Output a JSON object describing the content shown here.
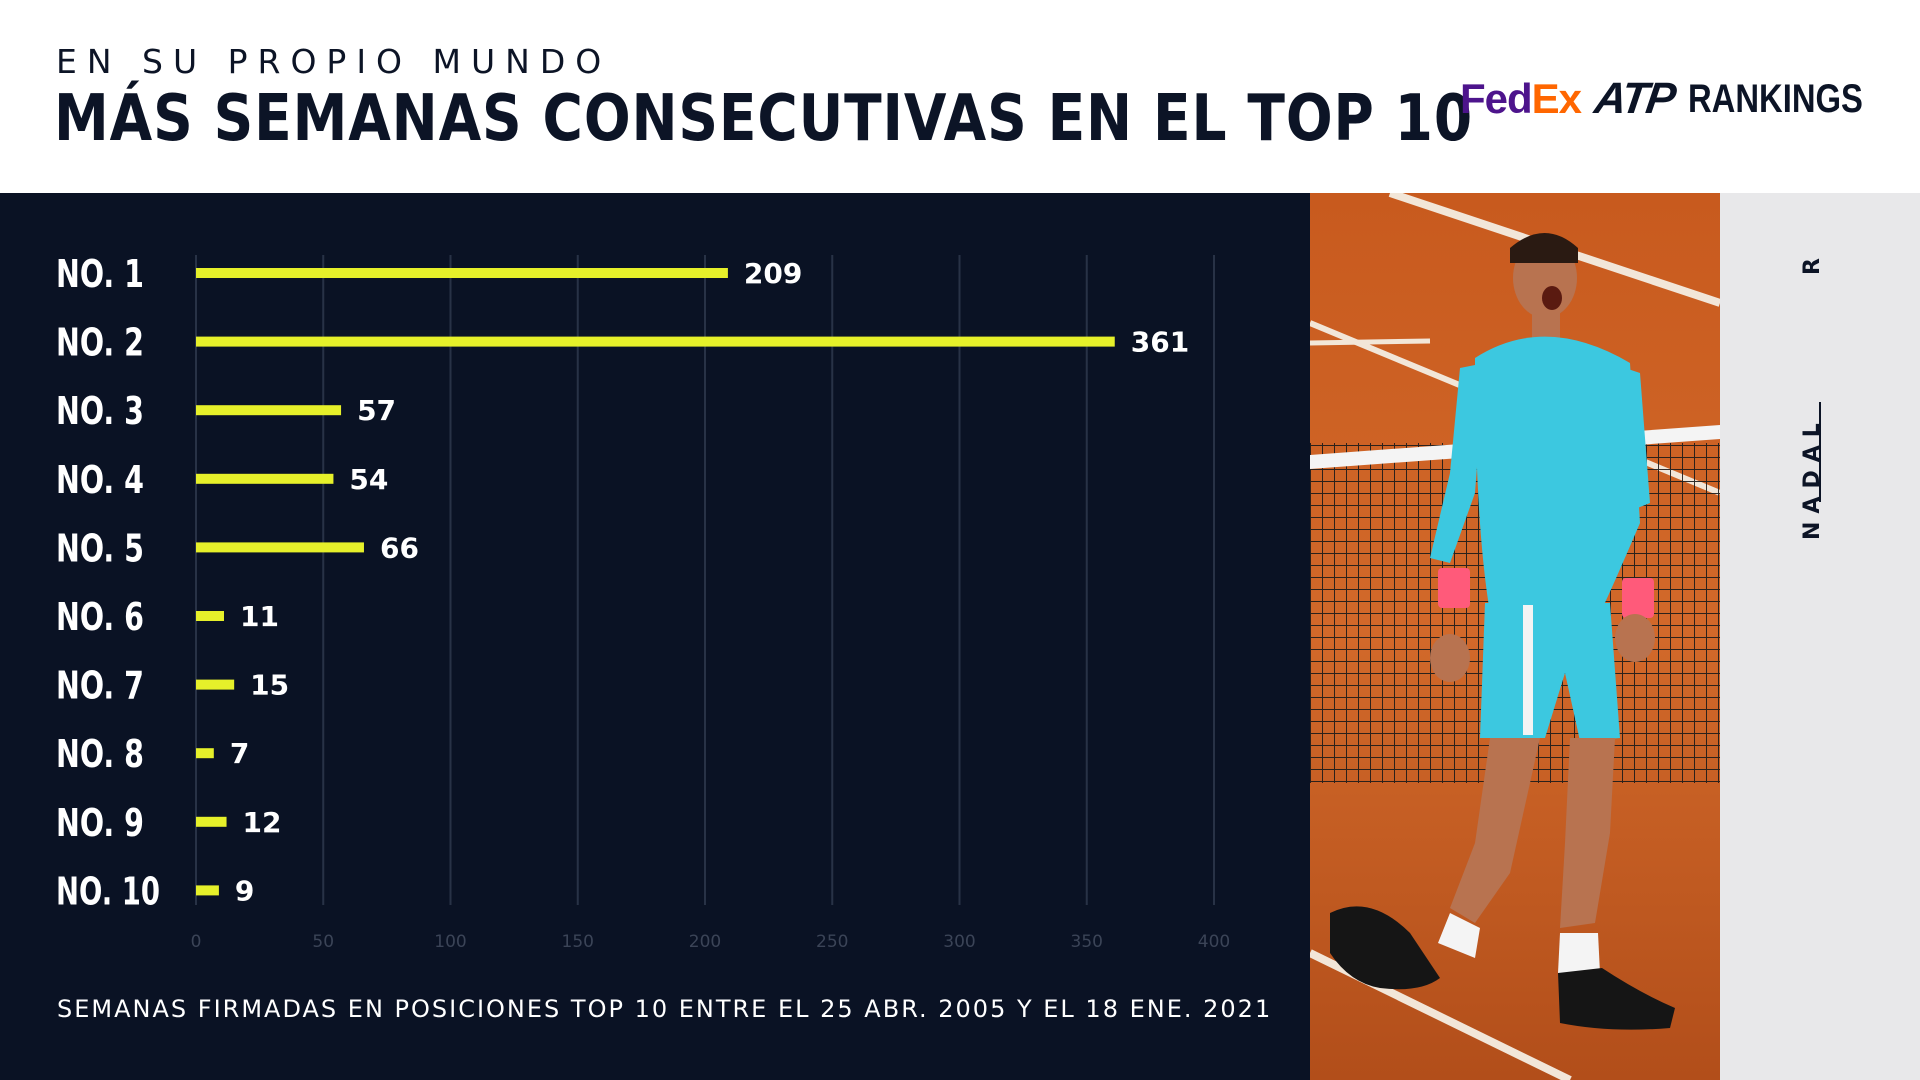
{
  "header": {
    "kicker": "EN SU PROPIO MUNDO",
    "title": "MÁS SEMANAS CONSECUTIVAS EN EL TOP 10"
  },
  "logo": {
    "fed": "Fed",
    "ex": "Ex",
    "atp": "ATP",
    "rankings": "RANKINGS"
  },
  "side": {
    "initial": "R",
    "surname": "NADAL"
  },
  "footnote": "SEMANAS FIRMADAS EN POSICIONES TOP 10 ENTRE EL 25 ABR. 2005 Y EL 18 ENE. 2021",
  "colors": {
    "bar": "#e6f02a",
    "panel": "#0a1224",
    "grid": "#283246",
    "tick": "#3b4457"
  },
  "chart_data": {
    "type": "bar",
    "orientation": "horizontal",
    "categories": [
      "NO. 1",
      "NO. 2",
      "NO. 3",
      "NO. 4",
      "NO. 5",
      "NO. 6",
      "NO. 7",
      "NO. 8",
      "NO. 9",
      "NO. 10"
    ],
    "values": [
      209,
      361,
      57,
      54,
      66,
      11,
      15,
      7,
      12,
      9
    ],
    "xlim": [
      0,
      400
    ],
    "xticks": [
      0,
      50,
      100,
      150,
      200,
      250,
      300,
      350,
      400
    ],
    "grid": true,
    "data_labels": true
  }
}
